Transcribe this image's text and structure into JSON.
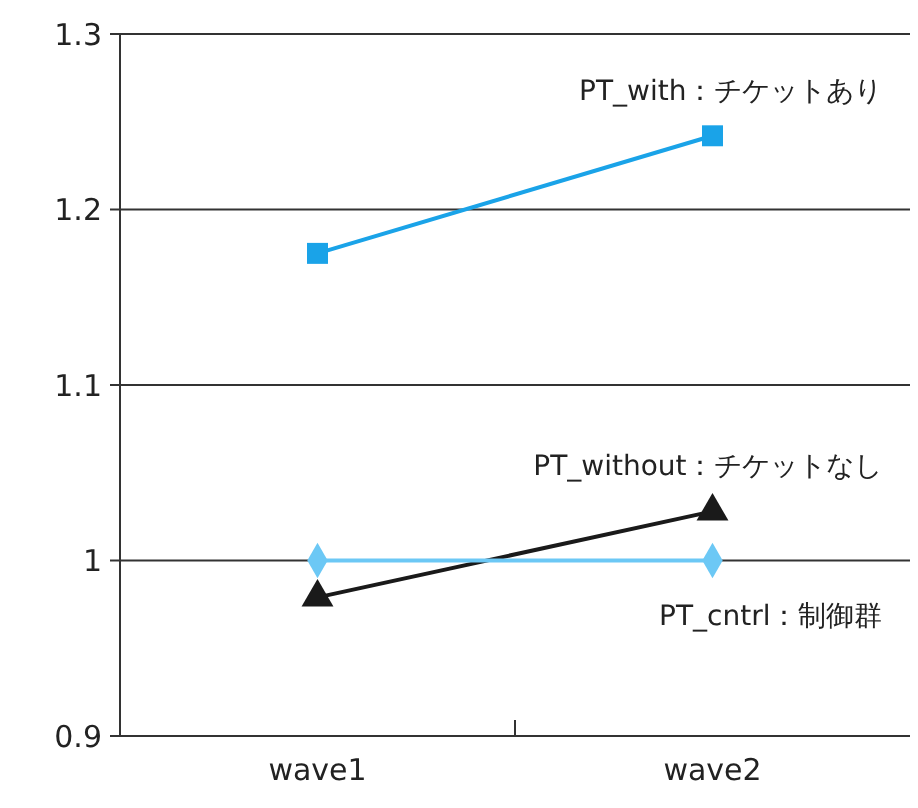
{
  "chart_data": {
    "type": "line",
    "categories": [
      "wave1",
      "wave2"
    ],
    "series": [
      {
        "name": "PT_with：チケットあり",
        "color": "#1aa3e8",
        "values": [
          1.175,
          1.242
        ],
        "marker": "square"
      },
      {
        "name": "PT_without：チケットなし",
        "color": "#1a1a1a",
        "values": [
          0.979,
          1.028
        ],
        "marker": "triangle"
      },
      {
        "name": "PT_cntrl：制御群",
        "color": "#6cc8f5",
        "values": [
          1.0,
          1.0
        ],
        "marker": "diamond"
      }
    ],
    "ylim": [
      0.9,
      1.3
    ],
    "yticks": [
      0.9,
      1,
      1.1,
      1.2,
      1.3
    ],
    "grid": "y",
    "line_style": "solid"
  }
}
